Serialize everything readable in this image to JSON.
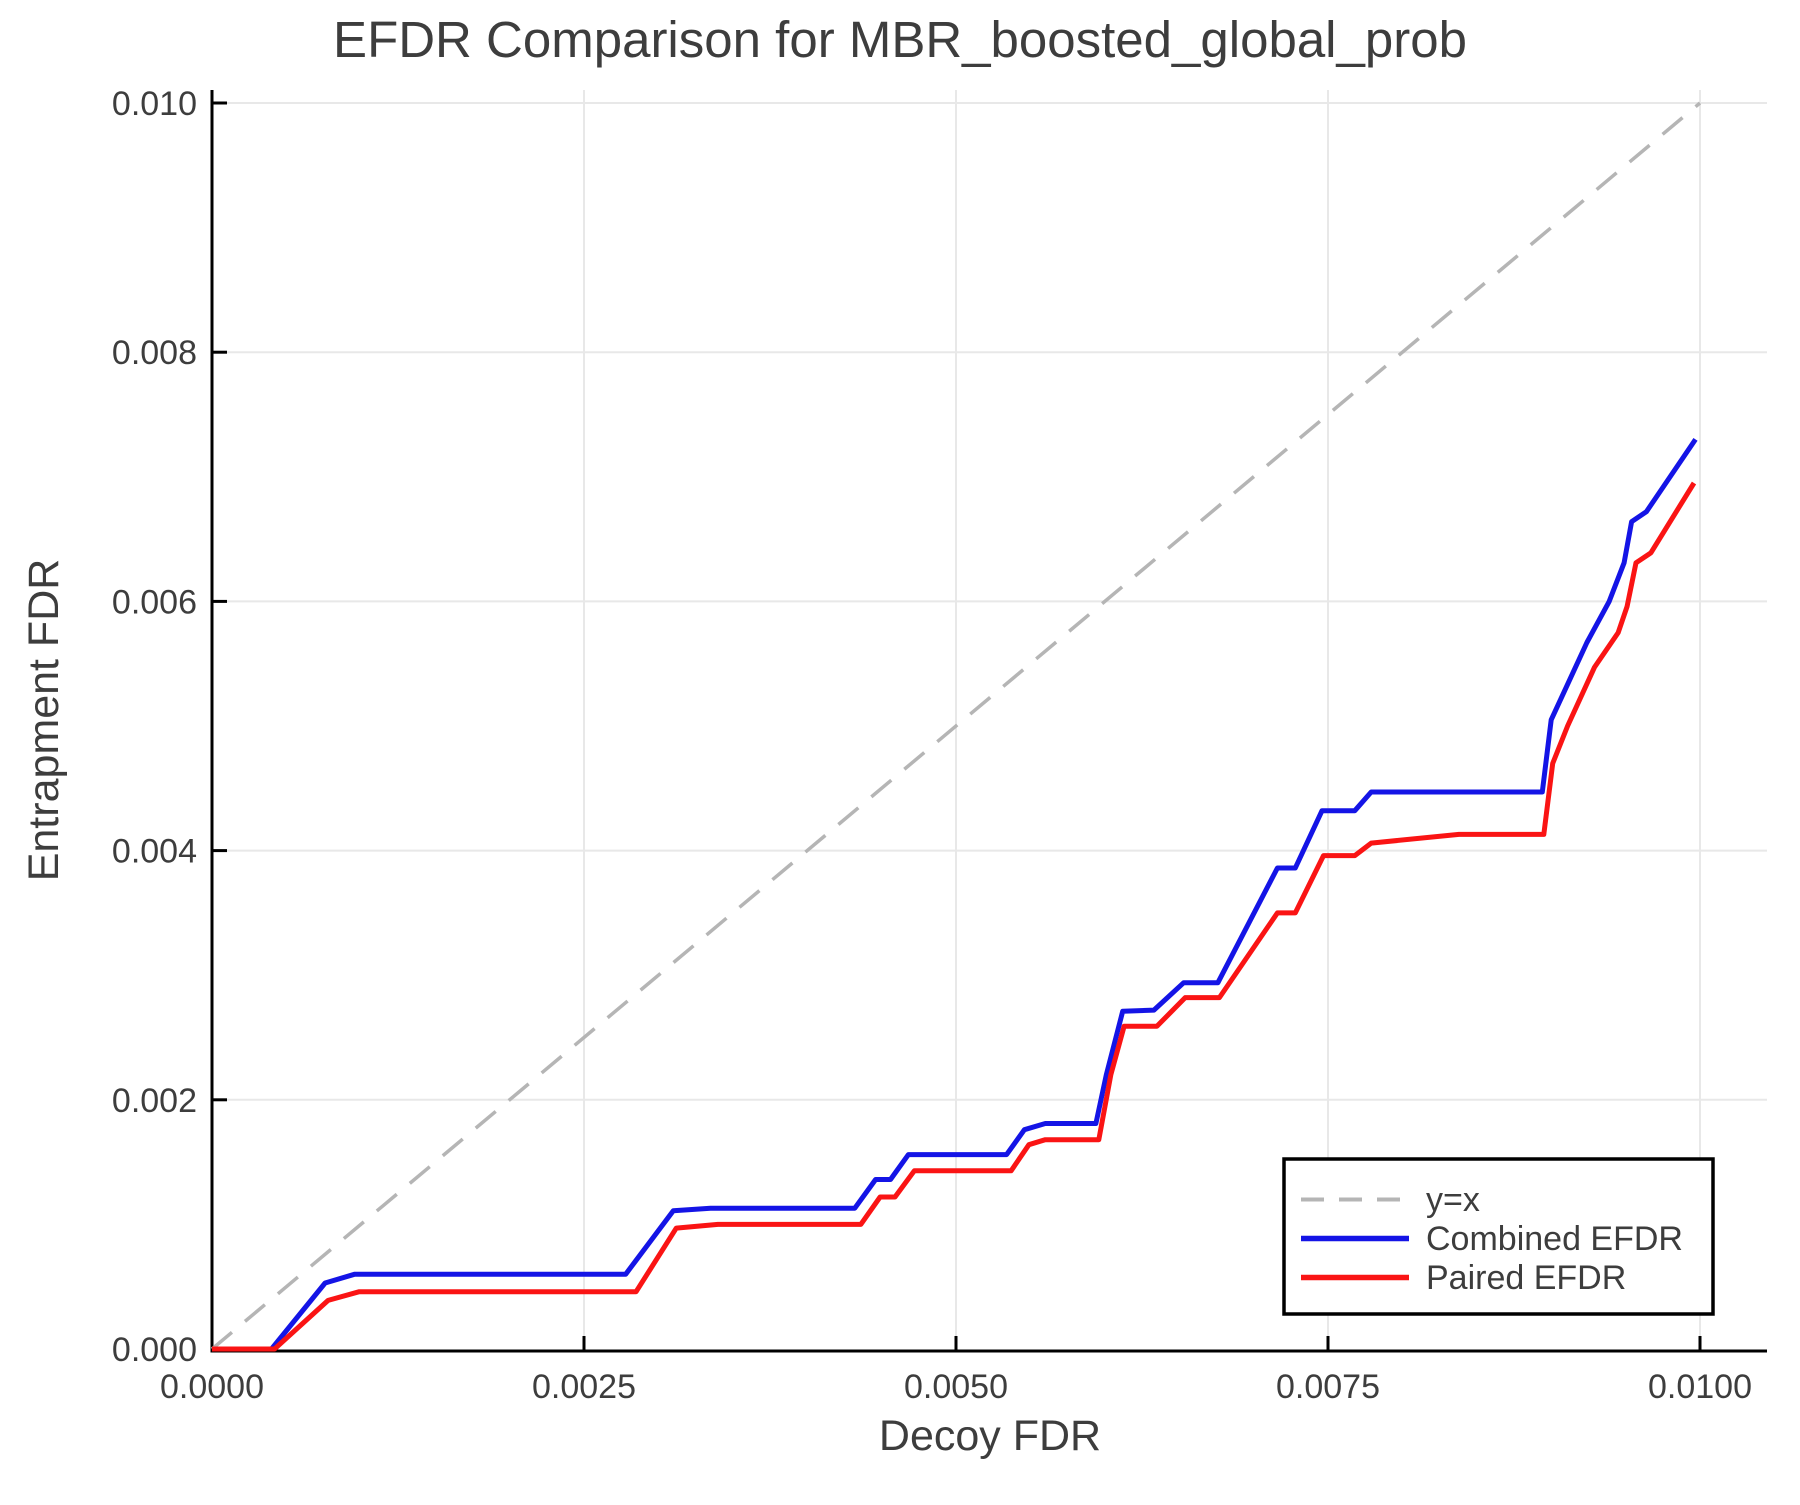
{
  "page": {
    "background": "#ffffff"
  },
  "chart_data": {
    "type": "line",
    "title": "EFDR Comparison for MBR_boosted_global_prob",
    "xlabel": "Decoy FDR",
    "ylabel": "Entrapment FDR",
    "xlim": [
      0,
      0.010478
    ],
    "ylim": [
      0,
      0.010113
    ],
    "grid": true,
    "legend_position": "bottom-right",
    "x_tick_values": [
      0,
      0.0025,
      0.005,
      0.0075,
      0.01
    ],
    "x_tick_labels": [
      "0.0000",
      "0.0025",
      "0.0050",
      "0.0075",
      "0.0100"
    ],
    "y_tick_values": [
      0,
      0.002,
      0.004,
      0.006,
      0.008,
      0.01
    ],
    "y_tick_labels": [
      "0.000",
      "0.002",
      "0.004",
      "0.006",
      "0.008",
      "0.010"
    ],
    "colors": {
      "text": "#3d3d3d",
      "spine": "#000000",
      "grid": "#e8e8e8",
      "identity_line": "#b5b5b5",
      "combined": "#1414e6",
      "paired": "#fa1414"
    },
    "series": [
      {
        "name": "y=x",
        "color": "#b5b5b5",
        "style": "dashed",
        "points": [
          [
            0,
            0
          ],
          [
            0.01,
            0.01
          ]
        ]
      },
      {
        "name": "Combined EFDR",
        "color": "#1414e6",
        "style": "solid",
        "points": [
          [
            0.0,
            0.0
          ],
          [
            0.0004,
            0.0
          ],
          [
            0.00076,
            0.00053
          ],
          [
            0.00096,
            0.0006
          ],
          [
            0.00278,
            0.0006
          ],
          [
            0.0031,
            0.00111
          ],
          [
            0.00335,
            0.00113
          ],
          [
            0.00432,
            0.00113
          ],
          [
            0.00446,
            0.00136
          ],
          [
            0.00456,
            0.00136
          ],
          [
            0.00468,
            0.00156
          ],
          [
            0.00534,
            0.00156
          ],
          [
            0.00546,
            0.00176
          ],
          [
            0.0056,
            0.00181
          ],
          [
            0.00594,
            0.00181
          ],
          [
            0.00601,
            0.0022
          ],
          [
            0.00612,
            0.00271
          ],
          [
            0.00633,
            0.00272
          ],
          [
            0.00653,
            0.00294
          ],
          [
            0.00676,
            0.00294
          ],
          [
            0.00716,
            0.00386
          ],
          [
            0.00728,
            0.00386
          ],
          [
            0.00746,
            0.00432
          ],
          [
            0.00768,
            0.00432
          ],
          [
            0.00779,
            0.00447
          ],
          [
            0.00894,
            0.00447
          ],
          [
            0.009,
            0.00505
          ],
          [
            0.00912,
            0.00536
          ],
          [
            0.00924,
            0.00567
          ],
          [
            0.00939,
            0.006
          ],
          [
            0.00949,
            0.00631
          ],
          [
            0.00954,
            0.00664
          ],
          [
            0.00964,
            0.00672
          ],
          [
            0.00997,
            0.0073
          ]
        ]
      },
      {
        "name": "Paired EFDR",
        "color": "#fa1414",
        "style": "solid",
        "points": [
          [
            0.0,
            0.0
          ],
          [
            0.00042,
            0.0
          ],
          [
            0.00078,
            0.00039
          ],
          [
            0.00099,
            0.00046
          ],
          [
            0.00285,
            0.00046
          ],
          [
            0.00312,
            0.00097
          ],
          [
            0.0034,
            0.001
          ],
          [
            0.00436,
            0.001
          ],
          [
            0.00449,
            0.00122
          ],
          [
            0.00459,
            0.00122
          ],
          [
            0.00472,
            0.00143
          ],
          [
            0.00537,
            0.00143
          ],
          [
            0.00549,
            0.00164
          ],
          [
            0.0056,
            0.00168
          ],
          [
            0.00596,
            0.00168
          ],
          [
            0.00604,
            0.0022
          ],
          [
            0.00613,
            0.00259
          ],
          [
            0.00635,
            0.00259
          ],
          [
            0.00654,
            0.00282
          ],
          [
            0.00677,
            0.00282
          ],
          [
            0.00716,
            0.0035
          ],
          [
            0.00728,
            0.0035
          ],
          [
            0.00747,
            0.00396
          ],
          [
            0.00768,
            0.00396
          ],
          [
            0.00779,
            0.00406
          ],
          [
            0.00838,
            0.00413
          ],
          [
            0.00895,
            0.00413
          ],
          [
            0.00901,
            0.0047
          ],
          [
            0.00911,
            0.005
          ],
          [
            0.00929,
            0.00547
          ],
          [
            0.00945,
            0.00575
          ],
          [
            0.00951,
            0.00596
          ],
          [
            0.00957,
            0.00631
          ],
          [
            0.00967,
            0.00639
          ],
          [
            0.00996,
            0.00695
          ]
        ]
      }
    ]
  }
}
